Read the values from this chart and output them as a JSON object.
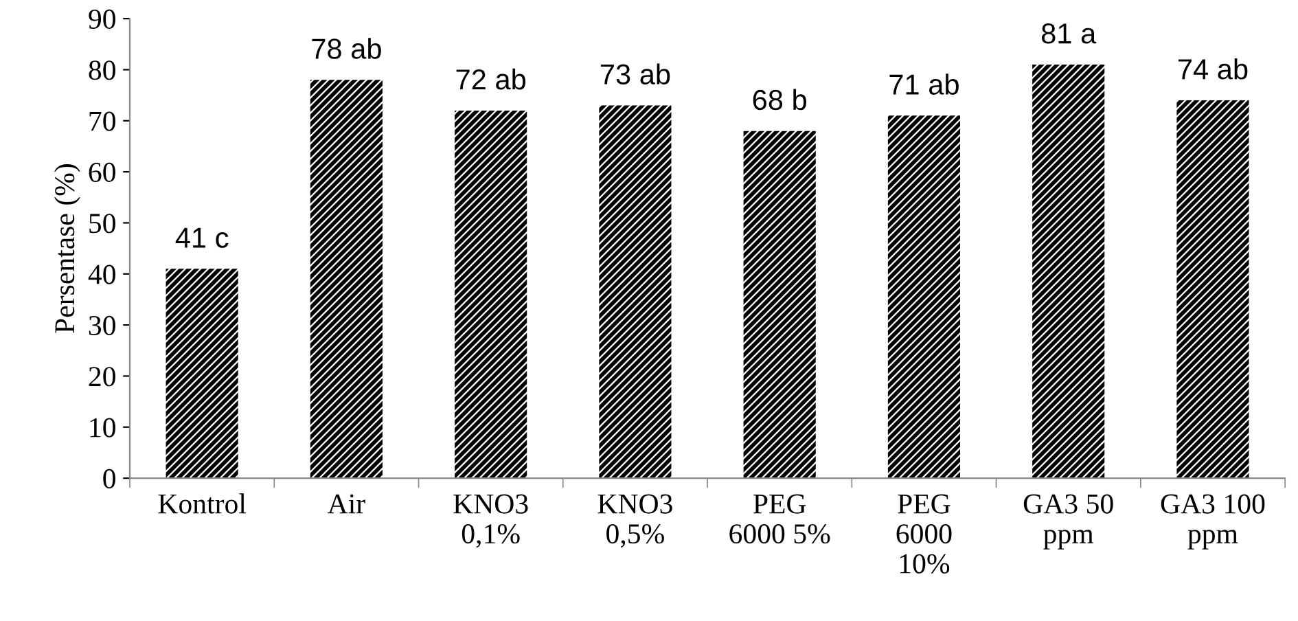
{
  "chart_data": {
    "type": "bar",
    "ylabel": "Persentase (%)",
    "categories": [
      "Kontrol",
      "Air",
      "KNO3\n0,1%",
      "KNO3\n0,5%",
      "PEG\n6000 5%",
      "PEG\n6000\n10%",
      "GA3 50\nppm",
      "GA3 100\nppm"
    ],
    "values": [
      41,
      78,
      72,
      73,
      68,
      71,
      81,
      74
    ],
    "value_labels": [
      "41 c",
      "78 ab",
      "72 ab",
      "73 ab",
      "68 b",
      "71 ab",
      "81 a",
      "74 ab"
    ],
    "color": "#000000",
    "ylim": [
      0,
      90
    ],
    "yticks": [
      0,
      10,
      20,
      30,
      40,
      50,
      60,
      70,
      80,
      90
    ],
    "grid": false,
    "legend": false
  }
}
